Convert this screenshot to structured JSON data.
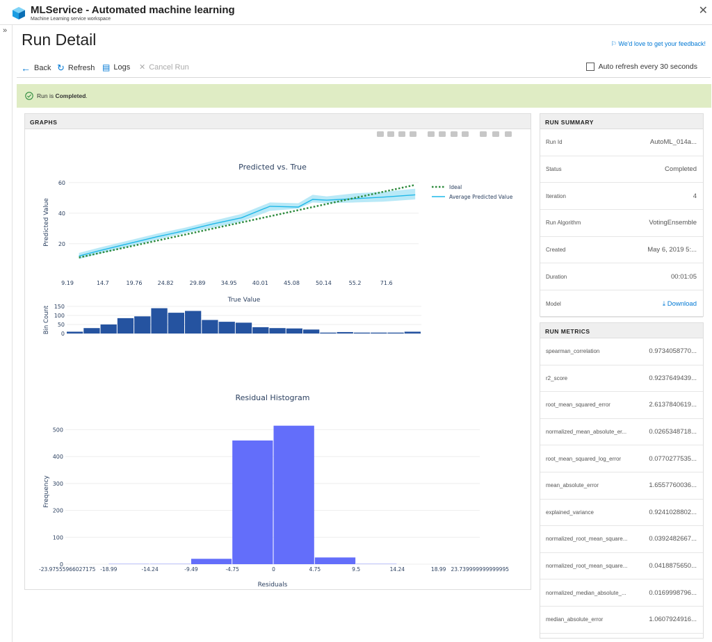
{
  "app": {
    "title": "MLService - Automated machine learning",
    "subtitle": "Machine Learning service workspace"
  },
  "page": {
    "title": "Run Detail",
    "feedback": "We'd love to get your feedback!"
  },
  "toolbar": {
    "back": "Back",
    "refresh": "Refresh",
    "logs": "Logs",
    "cancel": "Cancel Run",
    "auto_refresh": "Auto refresh every 30 seconds"
  },
  "banner": {
    "prefix": "Run is ",
    "status": "Completed",
    "suffix": "."
  },
  "graphs": {
    "header": "GRAPHS"
  },
  "summary": {
    "header": "RUN SUMMARY",
    "rows": [
      {
        "key": "Run Id",
        "value": "AutoML_014a..."
      },
      {
        "key": "Status",
        "value": "Completed"
      },
      {
        "key": "Iteration",
        "value": "4"
      },
      {
        "key": "Run Algorithm",
        "value": "VotingEnsemble"
      },
      {
        "key": "Created",
        "value": "May 6, 2019 5:..."
      },
      {
        "key": "Duration",
        "value": "00:01:05"
      },
      {
        "key": "Model",
        "value": "Download"
      }
    ]
  },
  "metrics": {
    "header": "RUN METRICS",
    "rows": [
      {
        "key": "spearman_correlation",
        "value": "0.9734058770..."
      },
      {
        "key": "r2_score",
        "value": "0.9237649439..."
      },
      {
        "key": "root_mean_squared_error",
        "value": "2.6137840619..."
      },
      {
        "key": "normalized_mean_absolute_er...",
        "value": "0.0265348718..."
      },
      {
        "key": "root_mean_squared_log_error",
        "value": "0.0770277535..."
      },
      {
        "key": "mean_absolute_error",
        "value": "1.6557760036..."
      },
      {
        "key": "explained_variance",
        "value": "0.9241028802..."
      },
      {
        "key": "normalized_root_mean_square...",
        "value": "0.0392482667..."
      },
      {
        "key": "normalized_root_mean_square...",
        "value": "0.0418875650..."
      },
      {
        "key": "normalized_median_absolute_...",
        "value": "0.0169998796..."
      },
      {
        "key": "median_absolute_error",
        "value": "1.0607924916..."
      }
    ]
  },
  "colors": {
    "accent": "#0078d4",
    "ideal": "#2e8b3e",
    "avg": "#1fb8e8",
    "band": "#a7e3f5",
    "bin": "#2553a0",
    "resid": "#636efa",
    "success_bg": "#dfecc4"
  },
  "chart_data": [
    {
      "type": "line",
      "title": "Predicted vs. True",
      "xlabel": "True Value",
      "ylabel": "Predicted Value",
      "xticks": [
        "9.19",
        "14.7",
        "19.76",
        "24.82",
        "29.89",
        "34.95",
        "40.01",
        "45.08",
        "50.14",
        "55.2",
        "71.6"
      ],
      "yticks": [
        "20",
        "40",
        "60"
      ],
      "xlim": [
        9.19,
        71.6
      ],
      "ylim": [
        4,
        64
      ],
      "series": [
        {
          "name": "Ideal",
          "x": [
            11,
            71
          ],
          "y": [
            11,
            58.5
          ],
          "style": "dotted"
        },
        {
          "name": "Average Predicted Value",
          "x": [
            11,
            14.7,
            19.76,
            24.82,
            29.89,
            34.95,
            40.01,
            45.08,
            50.14,
            52.7,
            55.2,
            60.3,
            65.3,
            71
          ],
          "y": [
            12,
            15.5,
            20,
            24.5,
            28.5,
            33,
            37,
            44.5,
            44,
            49,
            48.5,
            49.5,
            50.5,
            52
          ],
          "band_low": [
            10,
            13.5,
            18,
            22.5,
            27,
            30.5,
            34.5,
            41.5,
            43,
            47,
            46.5,
            47,
            47.5,
            49
          ],
          "band_high": [
            14,
            17.5,
            22,
            26.5,
            30.5,
            35,
            39.5,
            47,
            46.5,
            52,
            51,
            53,
            54,
            56
          ]
        }
      ]
    },
    {
      "type": "bar",
      "ylabel": "Bin Count",
      "yticks": [
        "0",
        "50",
        "100",
        "150"
      ],
      "ylim": [
        0,
        150
      ],
      "values": [
        10,
        30,
        50,
        85,
        95,
        140,
        115,
        125,
        75,
        65,
        60,
        35,
        30,
        28,
        22,
        5,
        8,
        5,
        5,
        5,
        10
      ]
    },
    {
      "type": "bar",
      "title": "Residual Histogram",
      "xlabel": "Residuals",
      "ylabel": "Frequency",
      "xticks": [
        "-23.97555966027175",
        "-18.99",
        "-14.24",
        "-9.49",
        "-4.75",
        "0",
        "4.75",
        "9.5",
        "14.24",
        "18.99",
        "23.739999999999995"
      ],
      "yticks": [
        "0",
        "100",
        "200",
        "300",
        "400",
        "500"
      ],
      "ylim": [
        0,
        540
      ],
      "bins": [
        {
          "from": -23.98,
          "to": -18.99,
          "value": 0
        },
        {
          "from": -18.99,
          "to": -14.24,
          "value": 1
        },
        {
          "from": -14.24,
          "to": -9.49,
          "value": 1
        },
        {
          "from": -9.49,
          "to": -4.75,
          "value": 20
        },
        {
          "from": -4.75,
          "to": 0,
          "value": 460
        },
        {
          "from": 0,
          "to": 4.75,
          "value": 515
        },
        {
          "from": 4.75,
          "to": 9.5,
          "value": 25
        },
        {
          "from": 9.5,
          "to": 14.24,
          "value": 1
        }
      ]
    }
  ]
}
